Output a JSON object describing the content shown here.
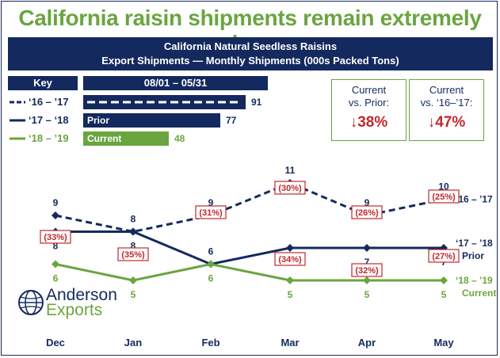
{
  "title": "California raisin shipments remain extremely low",
  "banner": {
    "line1": "California Natural Seedless Raisins",
    "line2": "Export Shipments — Monthly Shipments (000s Packed Tons)"
  },
  "key": {
    "heading": "Key",
    "range_heading": "08/01 – 05/31",
    "rows": [
      {
        "label": "‘16 – ’17",
        "bar_text": "",
        "value": "91",
        "bar_fraction": 1.0
      },
      {
        "label": "‘17 – ‘18",
        "bar_text": "Prior",
        "value": "77",
        "bar_fraction": 0.846
      },
      {
        "label": "‘18 – ’19",
        "bar_text": "Current",
        "value": "48",
        "bar_fraction": 0.527
      }
    ]
  },
  "comparisons": [
    {
      "label": "Current\nvs. Prior:",
      "value": "↓38%"
    },
    {
      "label": "Current\nvs. ‘16–’17:",
      "value": "↓47%"
    }
  ],
  "logo": {
    "line1": "Anderson",
    "line2": "Exports"
  },
  "colors": {
    "navy": "#14295e",
    "green": "#6aa53f",
    "red": "#c0282d"
  },
  "chart_data": {
    "type": "line",
    "categories": [
      "Dec",
      "Jan",
      "Feb",
      "Mar",
      "Apr",
      "May"
    ],
    "series": [
      {
        "name": "‘16 – ’17",
        "values": [
          9,
          8,
          9,
          11,
          9,
          10
        ],
        "style": "dashed",
        "marker": "diamond",
        "end_label": "‘16 – ’17"
      },
      {
        "name": "‘17 – ’18",
        "values": [
          8,
          8,
          6,
          7,
          7,
          7
        ],
        "style": "solid",
        "marker": "diamond",
        "end_label": "‘17 – ’18",
        "end_label2": "Prior"
      },
      {
        "name": "‘18 – ’19",
        "values": [
          6,
          5,
          6,
          5,
          5,
          5
        ],
        "style": "solid",
        "marker": "diamond",
        "end_label": "‘18 – ’19",
        "end_label2": "Current"
      }
    ],
    "point_labels": {
      "s0": [
        "9",
        "8",
        "9",
        "11",
        "9",
        "10"
      ],
      "s1": [
        "8",
        "8",
        "6",
        "7",
        "7",
        "7"
      ],
      "s2": [
        "6",
        "5",
        "6",
        "5",
        "5",
        "5"
      ]
    },
    "pct_change": [
      "(33%)",
      "(35%)",
      "(31%)",
      "(30%)",
      "(26%)",
      "(25%)"
    ],
    "pct_change_current": [
      "(33%)",
      "(35%)",
      "(31%)",
      "(34%)",
      "(32%)",
      "(27%)"
    ],
    "grid": false
  }
}
